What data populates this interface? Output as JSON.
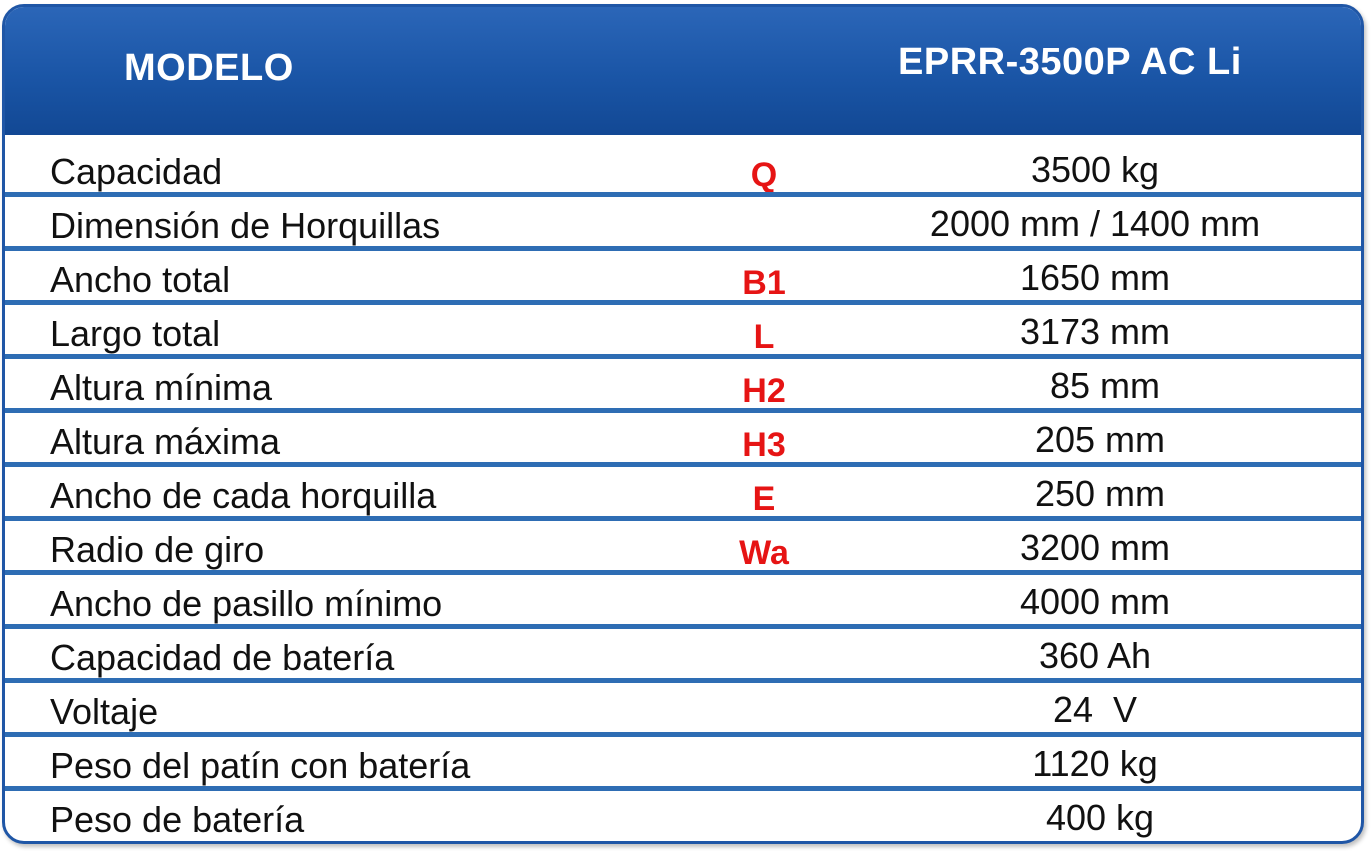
{
  "header": {
    "label": "MODELO",
    "model": "EPRR-3500P AC Li"
  },
  "colors": {
    "header_blue": "#1a55a6",
    "divider_blue": "#2e6db4",
    "symbol_red": "#e61414"
  },
  "rows": [
    {
      "label": "Capacidad",
      "symbol": "Q",
      "value": "3500 kg"
    },
    {
      "label": "Dimensión de Horquillas",
      "symbol": "",
      "value": "2000 mm / 1400 mm"
    },
    {
      "label": "Ancho total",
      "symbol": "B1",
      "value": "1650 mm"
    },
    {
      "label": "Largo total",
      "symbol": "L",
      "value": "3173 mm"
    },
    {
      "label": "Altura mínima",
      "symbol": "H2",
      "value": "  85 mm"
    },
    {
      "label": "Altura máxima",
      "symbol": "H3",
      "value": " 205 mm"
    },
    {
      "label": "Ancho de cada horquilla",
      "symbol": "E",
      "value": " 250 mm"
    },
    {
      "label": "Radio de giro",
      "symbol": "Wa",
      "value": "3200 mm"
    },
    {
      "label": "Ancho de pasillo mínimo",
      "symbol": "",
      "value": "4000 mm"
    },
    {
      "label": "Capacidad de batería",
      "symbol": "",
      "value": "360 Ah"
    },
    {
      "label": "Voltaje",
      "symbol": "",
      "value": "24  V"
    },
    {
      "label": "Peso del patín con batería",
      "symbol": "",
      "value": "1120 kg"
    },
    {
      "label": "Peso de batería",
      "symbol": "",
      "value": " 400 kg"
    }
  ]
}
